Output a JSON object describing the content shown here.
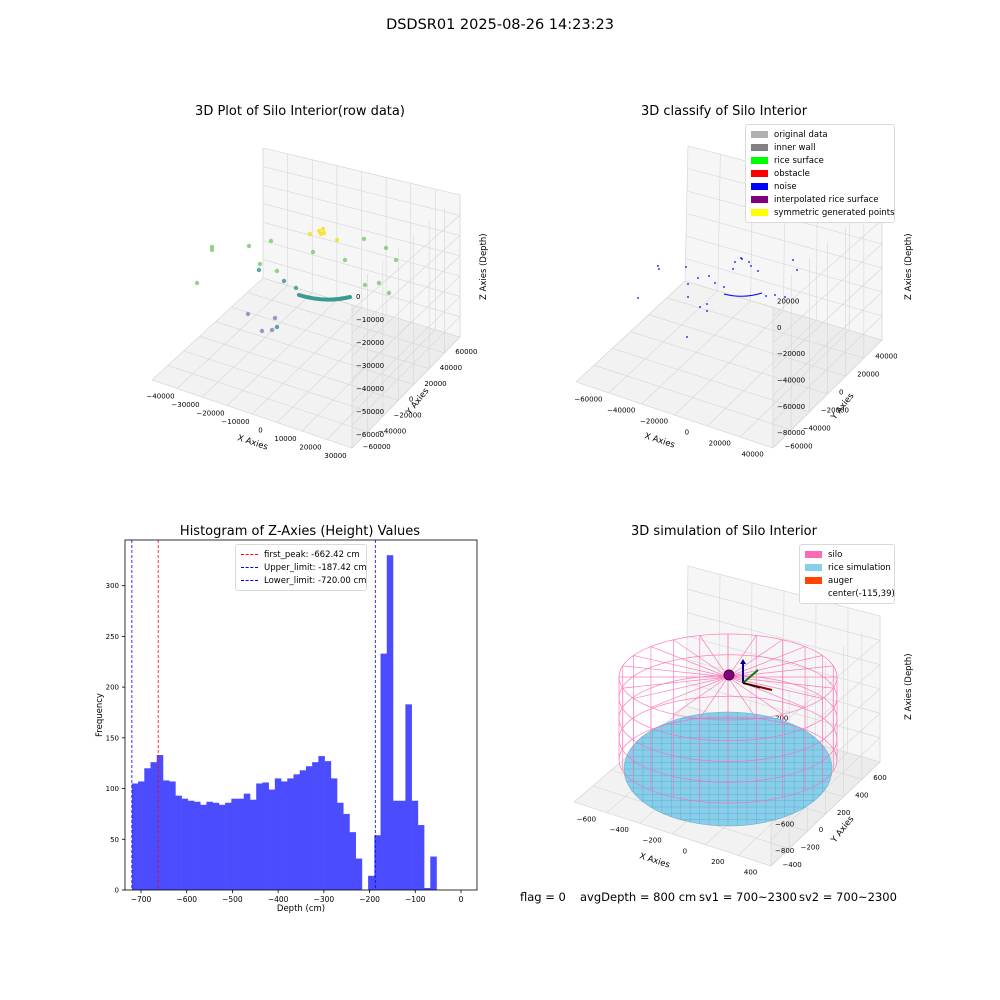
{
  "suptitle": "DSDSR01 2025-08-26 14:23:23",
  "chart_data": [
    {
      "type": "scatter",
      "title": "3D Plot of Silo Interior(row data)",
      "xlabel": "X Axies",
      "ylabel": "Y Axies",
      "zlabel": "Z Axies (Depth)",
      "x_ticks": [
        "−40000",
        "−30000",
        "−20000",
        "−10000",
        "0",
        "10000",
        "20000",
        "30000"
      ],
      "y_ticks": [
        "−60000",
        "−40000",
        "−20000",
        "0",
        "20000",
        "40000",
        "60000"
      ],
      "z_ticks": [
        "0",
        "−10000",
        "−20000",
        "−30000",
        "−40000",
        "−50000",
        "−60000"
      ],
      "xlim": [
        -45000,
        33000
      ],
      "ylim": [
        -62000,
        62000
      ],
      "zlim": [
        -65000,
        2000
      ],
      "colors": {
        "green": "#7fcd6f",
        "teal": "#3b9a94",
        "purple": "#9b7fb8",
        "yellow": "#f5e21c"
      }
    },
    {
      "type": "scatter",
      "title": "3D classify of Silo Interior",
      "xlabel": "X Axies",
      "ylabel": "Y Axies",
      "zlabel": "Z Axies (Depth)",
      "x_ticks": [
        "−60000",
        "−40000",
        "−20000",
        "0",
        "20000",
        "40000"
      ],
      "y_ticks": [
        "−60000",
        "−40000",
        "−20000",
        "0",
        "20000",
        "40000"
      ],
      "z_ticks": [
        "20000",
        "0",
        "−20000",
        "−40000",
        "−60000",
        "−80000"
      ],
      "xlim": [
        -65000,
        50000
      ],
      "ylim": [
        -62000,
        50000
      ],
      "zlim": [
        -90000,
        25000
      ],
      "legend": [
        {
          "label": "original data",
          "color": "#b0b0b0"
        },
        {
          "label": "inner wall",
          "color": "#808080"
        },
        {
          "label": "rice surface",
          "color": "#00ff00"
        },
        {
          "label": "obstacle",
          "color": "#ff0000"
        },
        {
          "label": "noise",
          "color": "#0000ff"
        },
        {
          "label": "interpolated rice surface",
          "color": "#800080"
        },
        {
          "label": "symmetric generated points",
          "color": "#ffff00"
        }
      ]
    },
    {
      "type": "bar",
      "title": "Histogram of Z-Axies (Height) Values",
      "xlabel": "Depth (cm)",
      "ylabel": "Frequency",
      "xlim": [
        -735,
        35
      ],
      "ylim": [
        0,
        345
      ],
      "x_ticks": [
        -700,
        -600,
        -500,
        -400,
        -300,
        -200,
        -100,
        0
      ],
      "x_tick_labels": [
        "−700",
        "−600",
        "−500",
        "−400",
        "−300",
        "−200",
        "−100",
        "0"
      ],
      "y_ticks": [
        0,
        50,
        100,
        150,
        200,
        250,
        300
      ],
      "y_tick_labels": [
        "0",
        "50",
        "100",
        "150",
        "200",
        "250",
        "300"
      ],
      "bin_start": -720,
      "bin_width": 13.6,
      "values": [
        105,
        107,
        120,
        126,
        133,
        108,
        107,
        93,
        90,
        88,
        87,
        84,
        87,
        86,
        84,
        86,
        90,
        90,
        95,
        89,
        105,
        106,
        99,
        110,
        107,
        110,
        114,
        118,
        122,
        126,
        132,
        127,
        110,
        86,
        75,
        57,
        31,
        0,
        14,
        54,
        233,
        330,
        88,
        88,
        183,
        88,
        64,
        2,
        33
      ],
      "bar_color": "#4c4cff",
      "lines": [
        {
          "label": "first_peak: -662.42 cm",
          "x": -662.42,
          "color": "#ff0000"
        },
        {
          "label": "Upper_limit: -187.42 cm",
          "x": -187.42,
          "color": "#0000ff"
        },
        {
          "label": "Lower_limit: -720.00 cm",
          "x": -720.0,
          "color": "#0000ff"
        }
      ]
    },
    {
      "type": "surface",
      "title": "3D simulation of Silo Interior",
      "xlabel": "X Axies",
      "ylabel": "Y Axies",
      "zlabel": "Z Axies (Depth)",
      "x_ticks": [
        "−600",
        "−400",
        "−200",
        "0",
        "200",
        "400"
      ],
      "y_ticks": [
        "−400",
        "−200",
        "0",
        "200",
        "400",
        "600"
      ],
      "z_ticks": [
        "200",
        "0",
        "−200",
        "−400",
        "−600",
        "−800"
      ],
      "legend": [
        {
          "label": "silo",
          "color": "#ff69b4"
        },
        {
          "label": "rice simulation",
          "color": "#87ceeb"
        },
        {
          "label": "auger",
          "color": "#ff4500"
        },
        {
          "label": "center(-115,39)",
          "color": ""
        }
      ]
    }
  ],
  "footer": {
    "flag": "flag = 0",
    "avg": "avgDepth = 800 cm",
    "sv1": "sv1 = 700~2300",
    "sv2": "sv2 = 700~2300"
  }
}
